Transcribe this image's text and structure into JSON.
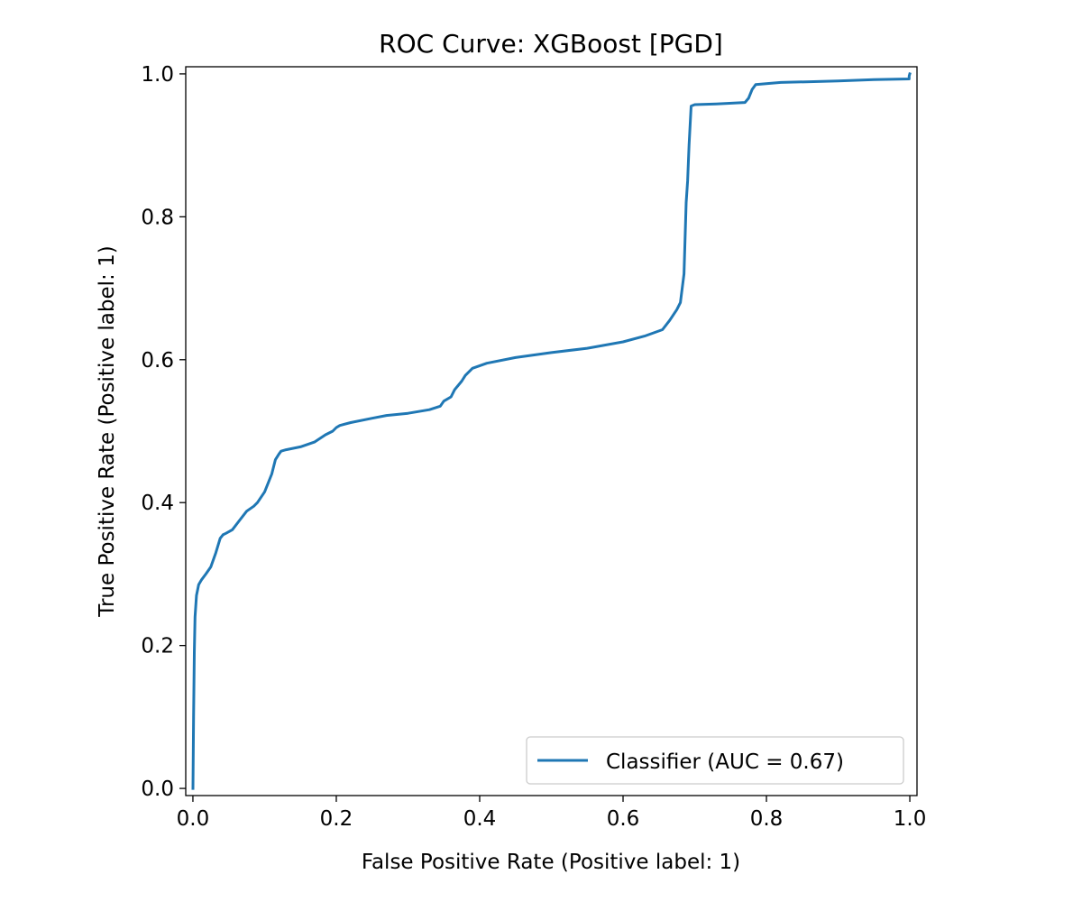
{
  "chart_data": {
    "type": "line",
    "title": "ROC Curve: XGBoost [PGD]",
    "xlabel": "False Positive Rate (Positive label: 1)",
    "ylabel": "True Positive Rate (Positive label: 1)",
    "xlim": [
      -0.01,
      1.01
    ],
    "ylim": [
      -0.01,
      1.01
    ],
    "x_ticks": [
      0.0,
      0.2,
      0.4,
      0.6,
      0.8,
      1.0
    ],
    "x_tick_labels": [
      "0.0",
      "0.2",
      "0.4",
      "0.6",
      "0.8",
      "1.0"
    ],
    "y_ticks": [
      0.0,
      0.2,
      0.4,
      0.6,
      0.8,
      1.0
    ],
    "y_tick_labels": [
      "0.0",
      "0.2",
      "0.4",
      "0.6",
      "0.8",
      "1.0"
    ],
    "grid": false,
    "legend_position": "lower-right",
    "series": [
      {
        "name": "Classifier (AUC = 0.67)",
        "color": "#1f77b4",
        "x": [
          0.0,
          0.001,
          0.002,
          0.003,
          0.005,
          0.008,
          0.012,
          0.018,
          0.025,
          0.032,
          0.038,
          0.042,
          0.046,
          0.055,
          0.065,
          0.075,
          0.085,
          0.09,
          0.1,
          0.11,
          0.115,
          0.12,
          0.123,
          0.13,
          0.15,
          0.17,
          0.185,
          0.195,
          0.2,
          0.205,
          0.22,
          0.25,
          0.27,
          0.3,
          0.33,
          0.345,
          0.35,
          0.36,
          0.365,
          0.375,
          0.38,
          0.39,
          0.41,
          0.45,
          0.5,
          0.55,
          0.6,
          0.63,
          0.655,
          0.665,
          0.675,
          0.68,
          0.685,
          0.688,
          0.69,
          0.692,
          0.695,
          0.7,
          0.73,
          0.77,
          0.775,
          0.78,
          0.785,
          0.82,
          0.9,
          0.95,
          0.999,
          0.999,
          1.0
        ],
        "y": [
          0.0,
          0.1,
          0.19,
          0.24,
          0.27,
          0.285,
          0.292,
          0.3,
          0.31,
          0.33,
          0.35,
          0.355,
          0.357,
          0.362,
          0.375,
          0.388,
          0.395,
          0.4,
          0.415,
          0.44,
          0.46,
          0.468,
          0.472,
          0.474,
          0.478,
          0.485,
          0.495,
          0.5,
          0.505,
          0.508,
          0.512,
          0.518,
          0.522,
          0.525,
          0.53,
          0.535,
          0.542,
          0.548,
          0.558,
          0.57,
          0.578,
          0.588,
          0.595,
          0.603,
          0.61,
          0.616,
          0.625,
          0.633,
          0.642,
          0.655,
          0.67,
          0.68,
          0.72,
          0.82,
          0.85,
          0.9,
          0.955,
          0.957,
          0.958,
          0.96,
          0.966,
          0.978,
          0.985,
          0.988,
          0.99,
          0.992,
          0.993,
          0.997,
          1.0
        ]
      }
    ]
  }
}
